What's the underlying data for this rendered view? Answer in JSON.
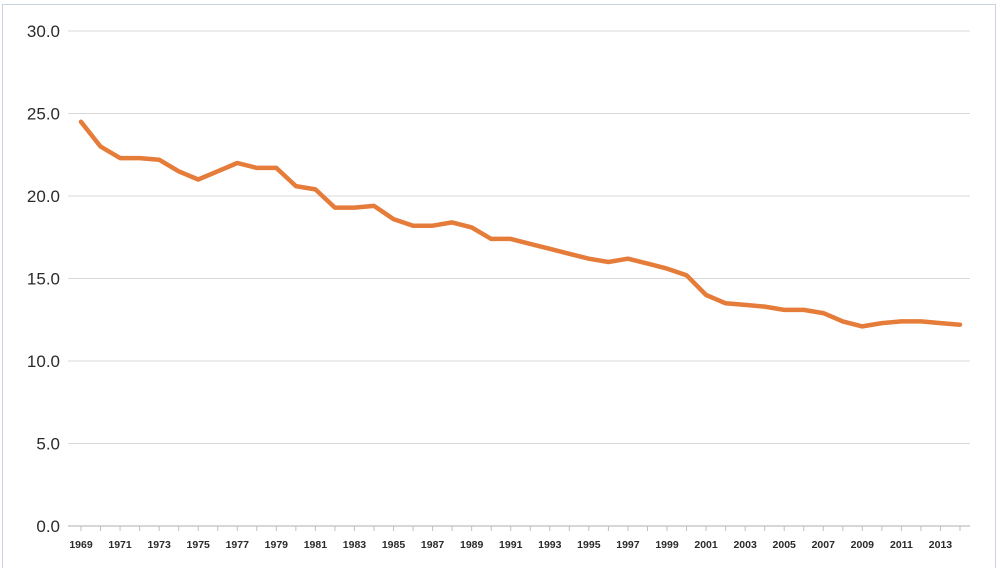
{
  "chart_data": {
    "type": "line",
    "title": "",
    "xlabel": "",
    "ylabel": "",
    "ylim": [
      0,
      30
    ],
    "yticks": [
      "0.0",
      "5.0",
      "10.0",
      "15.0",
      "20.0",
      "25.0",
      "30.0"
    ],
    "grid": true,
    "legend": "none",
    "x": [
      1969,
      1970,
      1971,
      1972,
      1973,
      1974,
      1975,
      1976,
      1977,
      1978,
      1979,
      1980,
      1981,
      1982,
      1983,
      1984,
      1985,
      1986,
      1987,
      1988,
      1989,
      1990,
      1991,
      1992,
      1993,
      1994,
      1995,
      1996,
      1997,
      1998,
      1999,
      2000,
      2001,
      2002,
      2003,
      2004,
      2005,
      2006,
      2007,
      2008,
      2009,
      2010,
      2011,
      2012,
      2013,
      2014
    ],
    "xtick_labels": [
      "1969",
      "1971",
      "1973",
      "1975",
      "1977",
      "1979",
      "1981",
      "1983",
      "1985",
      "1987",
      "1989",
      "1991",
      "1993",
      "1995",
      "1997",
      "1999",
      "2001",
      "2003",
      "2005",
      "2007",
      "2009",
      "2011",
      "2013"
    ],
    "series": [
      {
        "color": "#e57c3a",
        "values": [
          24.5,
          23.0,
          22.3,
          22.3,
          22.2,
          21.5,
          21.0,
          21.5,
          22.0,
          21.7,
          21.7,
          20.6,
          20.4,
          19.3,
          19.3,
          19.4,
          18.6,
          18.2,
          18.2,
          18.4,
          18.1,
          17.4,
          17.4,
          17.1,
          16.8,
          16.5,
          16.2,
          16.0,
          16.2,
          15.9,
          15.6,
          15.2,
          14.0,
          13.5,
          13.4,
          13.3,
          13.1,
          13.1,
          12.9,
          12.4,
          12.1,
          12.3,
          12.4,
          12.4,
          12.3,
          12.2
        ]
      }
    ]
  }
}
